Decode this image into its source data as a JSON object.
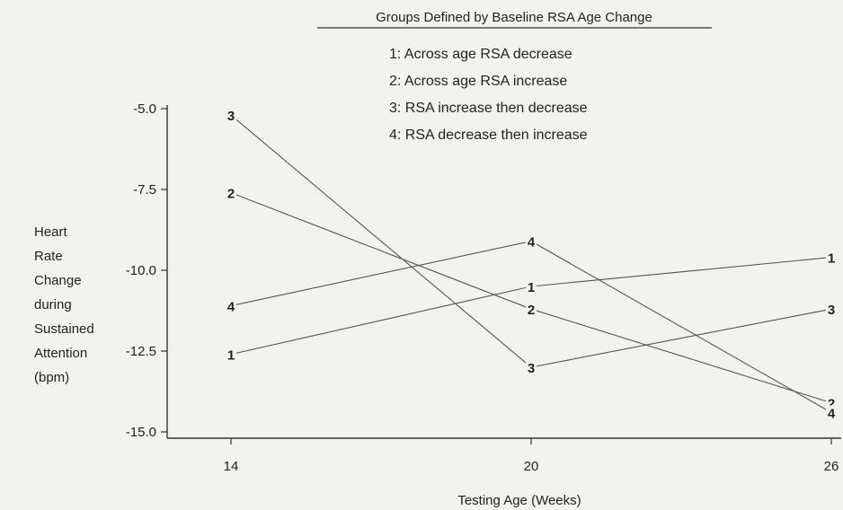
{
  "chart_data": {
    "type": "line",
    "legend": {
      "title": "Groups Defined by Baseline RSA Age Change",
      "entries": [
        "1: Across age RSA decrease",
        "2: Across age RSA increase",
        "3: RSA increase then decrease",
        "4: RSA decrease then increase"
      ]
    },
    "ylabel_lines": [
      "Heart",
      "Rate",
      "Change",
      "during",
      "Sustained",
      "Attention",
      "(bpm)"
    ],
    "xlabel": "Testing Age (Weeks)",
    "x": [
      14,
      20,
      26
    ],
    "x_tick_labels": [
      "14",
      "20",
      "26"
    ],
    "y_ticks": [
      -5.0,
      -7.5,
      -10.0,
      -12.5,
      -15.0
    ],
    "y_tick_labels": [
      "-5.0",
      "-7.5",
      "-10.0",
      "-12.5",
      "-15.0"
    ],
    "ylim": [
      -15.0,
      -5.0
    ],
    "grid": false,
    "legend_placement": "top-center",
    "series": [
      {
        "marker": "1",
        "values": [
          -12.6,
          -10.5,
          -9.6
        ]
      },
      {
        "marker": "2",
        "values": [
          -7.6,
          -11.2,
          -14.1
        ]
      },
      {
        "marker": "3",
        "values": [
          -5.2,
          -13.0,
          -11.2
        ]
      },
      {
        "marker": "4",
        "values": [
          -11.1,
          -9.1,
          -14.4
        ]
      }
    ]
  }
}
